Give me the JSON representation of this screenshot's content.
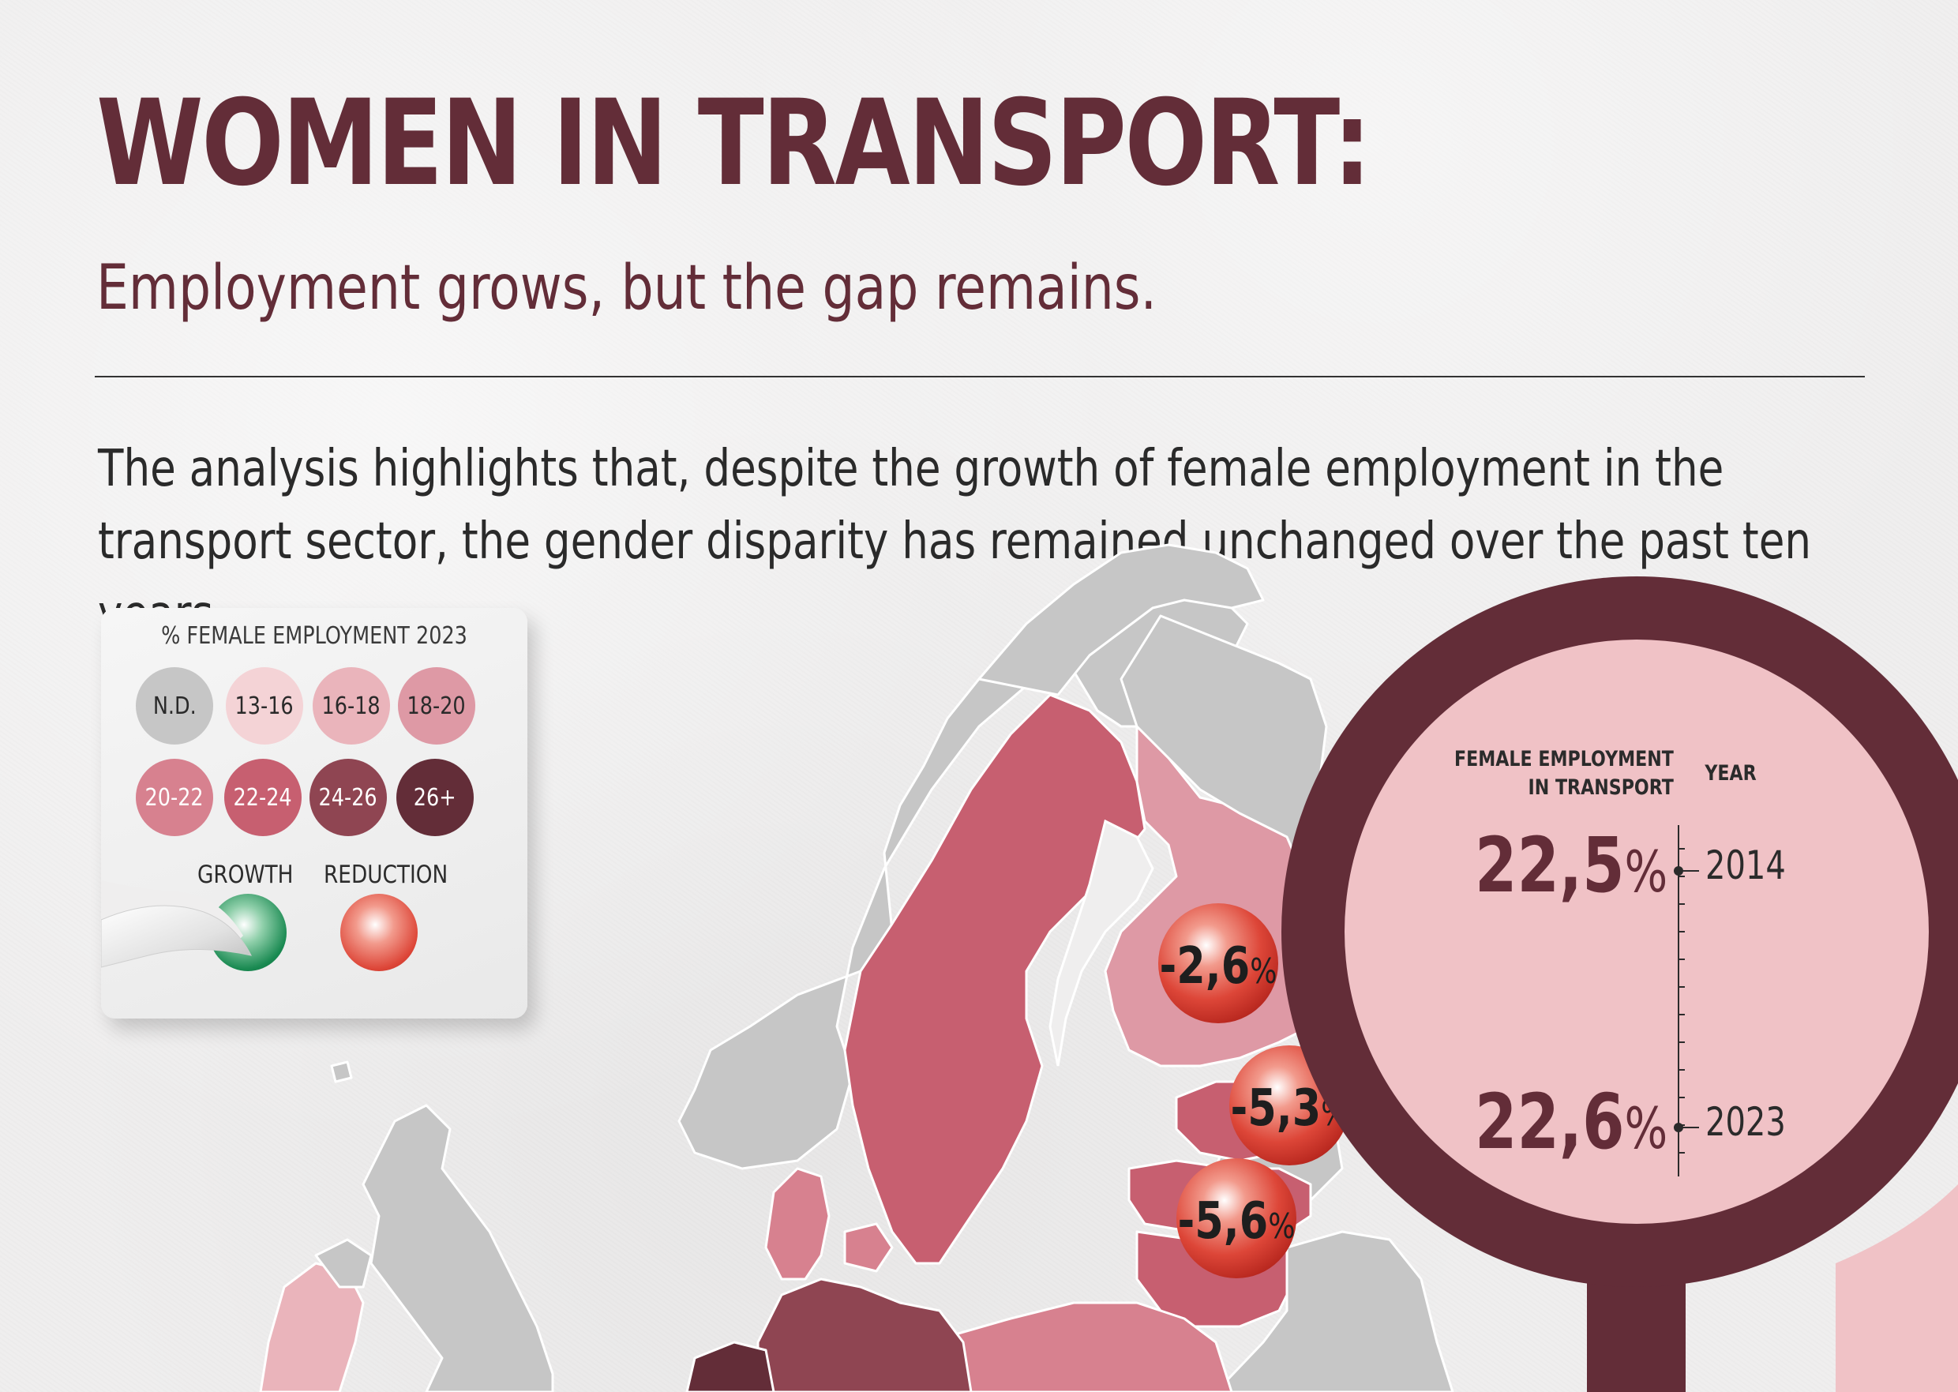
{
  "header": {
    "title": "WOMEN IN TRANSPORT:",
    "subtitle": "Employment grows, but the gap remains.",
    "intro": "The analysis highlights that, despite the growth of female employment in the transport sector, the gender disparity has remained unchanged over the past ten years."
  },
  "legend": {
    "title": "% FEMALE EMPLOYMENT 2023",
    "classes": [
      {
        "label": "N.D.",
        "color": "#c6c6c6"
      },
      {
        "label": "13-16",
        "color": "#f4d3d6"
      },
      {
        "label": "16-18",
        "color": "#eab4bb"
      },
      {
        "label": "18-20",
        "color": "#de99a5"
      },
      {
        "label": "20-22",
        "color": "#d7818f"
      },
      {
        "label": "22-24",
        "color": "#c75f70"
      },
      {
        "label": "24-26",
        "color": "#8f4552"
      },
      {
        "label": "26+",
        "color": "#632d38"
      }
    ],
    "growth_label": "GROWTH",
    "reduction_label": "REDUCTION",
    "growth_color": "#0e7d45",
    "reduction_color": "#d8352d"
  },
  "map": {
    "changes": [
      {
        "country": "Finland",
        "value": "-2,6",
        "unit": "%"
      },
      {
        "country": "Estonia",
        "value": "-5,3",
        "unit": "%"
      },
      {
        "country": "Latvia",
        "value": "-5,6",
        "unit": "%"
      }
    ]
  },
  "magnifier": {
    "head_left_line1": "FEMALE EMPLOYMENT",
    "head_left_line2": "IN TRANSPORT",
    "head_right": "YEAR",
    "rows": [
      {
        "value": "22,5",
        "unit": "%",
        "year": "2014"
      },
      {
        "value": "22,6",
        "unit": "%",
        "year": "2023"
      }
    ],
    "ring_color": "#632d38",
    "lens_color": "#f0c2c6"
  }
}
